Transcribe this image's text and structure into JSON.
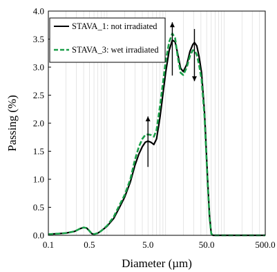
{
  "chart_data": {
    "type": "line",
    "xlabel": "Diameter (µm)",
    "ylabel": "Passing (%)",
    "x_scale": "log",
    "xlim": [
      0.1,
      500
    ],
    "ylim": [
      0,
      4
    ],
    "x_ticks": [
      0.1,
      0.5,
      5,
      50,
      500
    ],
    "x_tick_labels": [
      "0.1",
      "0.5",
      "5.0",
      "50.0",
      "500.0"
    ],
    "y_ticks": [
      0,
      0.5,
      1,
      1.5,
      2,
      2.5,
      3,
      3.5,
      4
    ],
    "y_tick_labels": [
      "0.0",
      "0.5",
      "1.0",
      "1.5",
      "2.0",
      "2.5",
      "3.0",
      "3.5",
      "4.0"
    ],
    "grid": "vertical log minor gridlines",
    "legend_position": "top-left",
    "series": [
      {
        "name": "STAVA_1: not irradiated",
        "color": "#000000",
        "style": "solid",
        "points": [
          [
            0.1,
            0.02
          ],
          [
            0.15,
            0.03
          ],
          [
            0.2,
            0.04
          ],
          [
            0.28,
            0.07
          ],
          [
            0.35,
            0.12
          ],
          [
            0.4,
            0.14
          ],
          [
            0.45,
            0.13
          ],
          [
            0.5,
            0.08
          ],
          [
            0.55,
            0.03
          ],
          [
            0.6,
            0.02
          ],
          [
            0.7,
            0.04
          ],
          [
            0.8,
            0.08
          ],
          [
            1.0,
            0.16
          ],
          [
            1.3,
            0.3
          ],
          [
            1.6,
            0.48
          ],
          [
            2.0,
            0.68
          ],
          [
            2.5,
            0.95
          ],
          [
            3.0,
            1.25
          ],
          [
            3.5,
            1.45
          ],
          [
            4.0,
            1.58
          ],
          [
            4.5,
            1.66
          ],
          [
            5.0,
            1.68
          ],
          [
            5.6,
            1.66
          ],
          [
            6.3,
            1.62
          ],
          [
            7.0,
            1.72
          ],
          [
            8.0,
            2.1
          ],
          [
            10.0,
            2.9
          ],
          [
            11.5,
            3.3
          ],
          [
            13.0,
            3.48
          ],
          [
            14.5,
            3.45
          ],
          [
            16.0,
            3.25
          ],
          [
            18.0,
            2.98
          ],
          [
            20.0,
            2.92
          ],
          [
            23.0,
            3.05
          ],
          [
            26.0,
            3.28
          ],
          [
            29.0,
            3.4
          ],
          [
            31.0,
            3.44
          ],
          [
            34.0,
            3.38
          ],
          [
            37.0,
            3.2
          ],
          [
            41.0,
            2.9
          ],
          [
            46.0,
            2.2
          ],
          [
            52.0,
            1.0
          ],
          [
            56.0,
            0.35
          ],
          [
            60.0,
            0.03
          ],
          [
            64.0,
            0.0
          ],
          [
            500.0,
            0.0
          ]
        ]
      },
      {
        "name": "STAVA_3: wet irradiated",
        "color": "#1a9e48",
        "style": "dashed",
        "points": [
          [
            0.1,
            0.02
          ],
          [
            0.15,
            0.03
          ],
          [
            0.2,
            0.04
          ],
          [
            0.28,
            0.07
          ],
          [
            0.35,
            0.12
          ],
          [
            0.4,
            0.14
          ],
          [
            0.45,
            0.13
          ],
          [
            0.5,
            0.08
          ],
          [
            0.55,
            0.03
          ],
          [
            0.6,
            0.02
          ],
          [
            0.7,
            0.04
          ],
          [
            0.8,
            0.08
          ],
          [
            1.0,
            0.17
          ],
          [
            1.3,
            0.33
          ],
          [
            1.6,
            0.52
          ],
          [
            2.0,
            0.72
          ],
          [
            2.5,
            1.0
          ],
          [
            3.0,
            1.35
          ],
          [
            3.5,
            1.58
          ],
          [
            4.0,
            1.72
          ],
          [
            4.5,
            1.79
          ],
          [
            5.0,
            1.8
          ],
          [
            5.6,
            1.79
          ],
          [
            6.3,
            1.76
          ],
          [
            7.0,
            1.88
          ],
          [
            8.0,
            2.3
          ],
          [
            10.0,
            3.1
          ],
          [
            11.5,
            3.45
          ],
          [
            13.0,
            3.6
          ],
          [
            14.5,
            3.52
          ],
          [
            16.0,
            3.2
          ],
          [
            18.0,
            2.9
          ],
          [
            20.0,
            2.86
          ],
          [
            23.0,
            3.0
          ],
          [
            26.0,
            3.2
          ],
          [
            29.0,
            3.3
          ],
          [
            31.0,
            3.3
          ],
          [
            34.0,
            3.22
          ],
          [
            37.0,
            3.05
          ],
          [
            41.0,
            2.78
          ],
          [
            46.0,
            2.12
          ],
          [
            52.0,
            0.95
          ],
          [
            56.0,
            0.32
          ],
          [
            60.0,
            0.03
          ],
          [
            64.0,
            0.0
          ],
          [
            500.0,
            0.0
          ]
        ]
      }
    ],
    "annotations": [
      {
        "type": "arrow",
        "direction": "up",
        "x": 5.0,
        "y_from": 1.22,
        "y_to": 2.12
      },
      {
        "type": "arrow",
        "direction": "up",
        "x": 13.0,
        "y_from": 2.85,
        "y_to": 3.8
      },
      {
        "type": "arrow",
        "direction": "down",
        "x": 31.0,
        "y_from": 3.68,
        "y_to": 2.75
      }
    ]
  }
}
